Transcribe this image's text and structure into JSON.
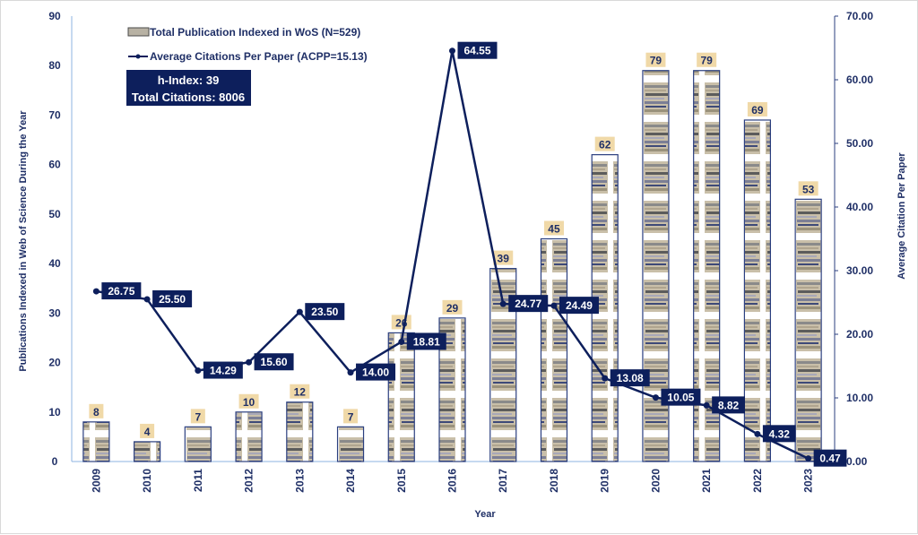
{
  "chart_data": {
    "type": "bar+line",
    "xlabel": "Year",
    "ylabel_left": "Publications Indexed in Web of Science During the Year",
    "ylabel_right": "Average Citation Per Paper",
    "categories": [
      "2009",
      "2010",
      "2011",
      "2012",
      "2013",
      "2014",
      "2015",
      "2016",
      "2017",
      "2018",
      "2019",
      "2020",
      "2021",
      "2022",
      "2023"
    ],
    "series": [
      {
        "name": "Total Publication Indexed in WoS (N=529)",
        "type": "bar",
        "axis": "left",
        "values": [
          8,
          4,
          7,
          10,
          12,
          7,
          26,
          29,
          39,
          45,
          62,
          79,
          79,
          69,
          53
        ]
      },
      {
        "name": "Average Citations Per Paper (ACPP=15.13)",
        "type": "line",
        "axis": "right",
        "values": [
          26.75,
          25.5,
          14.29,
          15.6,
          23.5,
          14.0,
          18.81,
          64.55,
          24.77,
          24.49,
          13.08,
          10.05,
          8.82,
          4.32,
          0.47
        ],
        "labels": [
          "26.75",
          "25.50",
          "14.29",
          "15.60",
          "23.50",
          "14.00",
          "18.81",
          "64.55",
          "24.77",
          "24.49",
          "13.08",
          "10.05",
          "8.82",
          "4.32",
          "0.47"
        ]
      }
    ],
    "ylim_left": [
      0,
      90
    ],
    "yticks_left": [
      "0",
      "10",
      "20",
      "30",
      "40",
      "50",
      "60",
      "70",
      "80",
      "90"
    ],
    "ylim_right": [
      0,
      70
    ],
    "yticks_right": [
      "0.00",
      "10.00",
      "20.00",
      "30.00",
      "40.00",
      "50.00",
      "60.00",
      "70.00"
    ],
    "grid": false,
    "legend_position": "top-left",
    "annotations": [
      "h-Index: 39",
      "Total Citations: 8006"
    ]
  },
  "colors": {
    "navy": "#0d1f5c",
    "axis_text": "#1f2f66",
    "bar_label_bg": "#f0d9a8",
    "bar_border": "#2b3f7f",
    "axis_line": "#8db3e2"
  },
  "legend": {
    "bar_label": "Total Publication Indexed in WoS (N=529)",
    "line_label": "Average Citations Per Paper (ACPP=15.13)"
  },
  "info_box": {
    "line1": "h-Index: 39",
    "line2": "Total Citations: 8006"
  }
}
